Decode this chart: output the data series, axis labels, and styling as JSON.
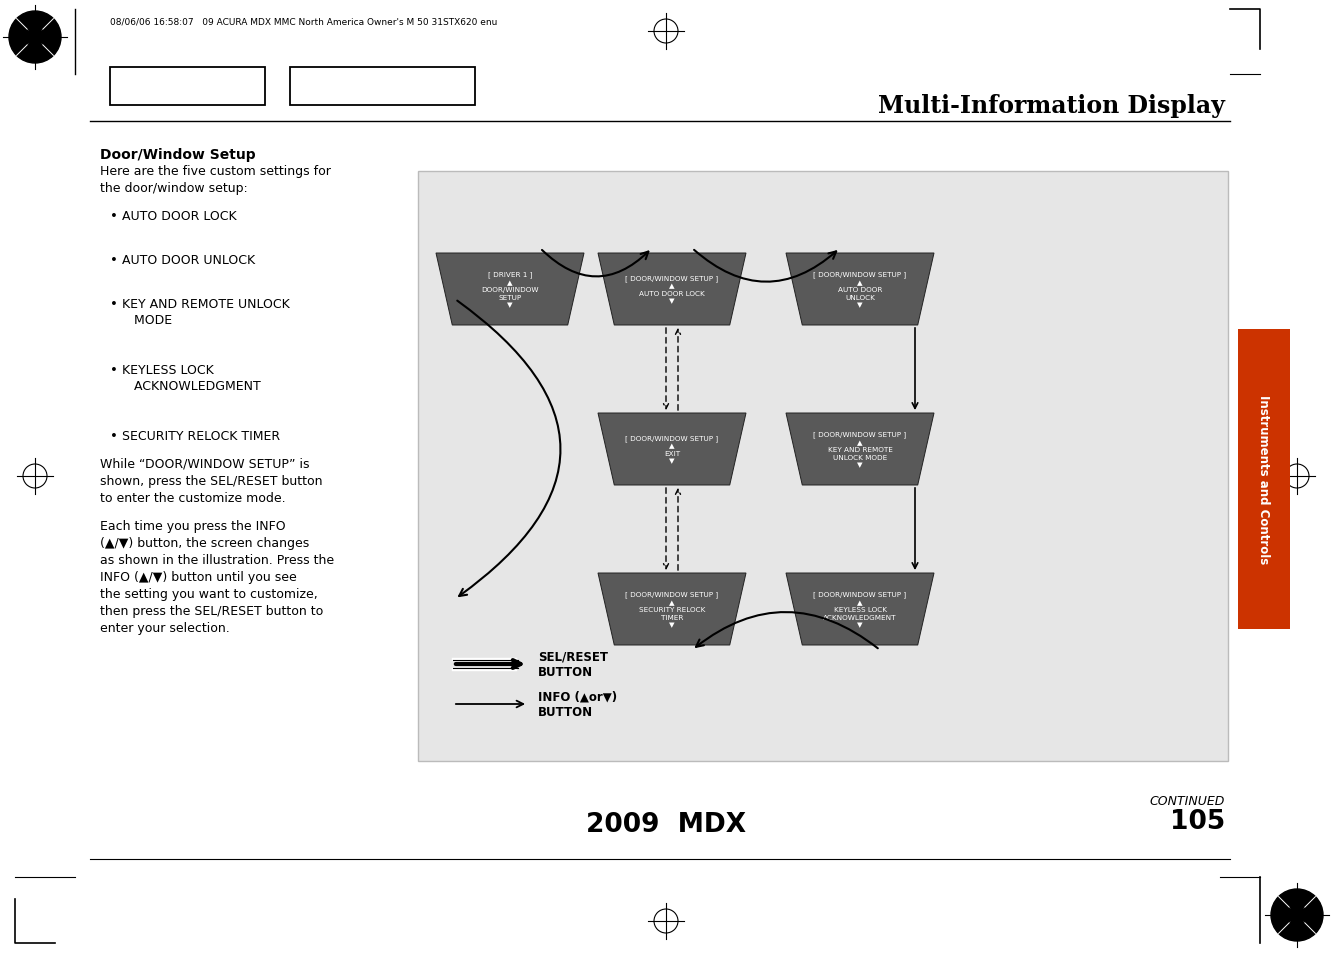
{
  "title": "Multi-Information Display",
  "page_header": "08/06/06 16:58:07   09 ACURA MDX MMC North America Owner's M 50 31STX620 enu",
  "page_number": "105",
  "page_model": "2009  MDX",
  "continued": "CONTINUED",
  "sidebar_text": "Instruments and Controls",
  "section_title": "Door/Window Setup",
  "section_body_bold": "Door/Window Setup",
  "section_para1": "Here are the five custom settings for\nthe door/window setup:",
  "bullets": [
    "AUTO DOOR LOCK",
    "AUTO DOOR UNLOCK",
    "KEY AND REMOTE UNLOCK\n   MODE",
    "KEYLESS LOCK\n   ACKNOWLEDGMENT",
    "SECURITY RELOCK TIMER"
  ],
  "para2": "While “DOOR/WINDOW SETUP” is\nshown, press the SEL/RESET button\nto enter the customize mode.",
  "para3": "Each time you press the INFO\n(▲/▼) button, the screen changes\nas shown in the illustration. Press the\nINFO (▲/▼) button until you see\nthe setting you want to customize,\nthen press the SEL/RESET button to\nenter your selection.",
  "diagram_bg": "#e6e6e6",
  "box_color": "#595959",
  "box_text_color": "#ffffff",
  "sel_reset_label": "SEL/RESET\nBUTTON",
  "info_button_label": "INFO (▲or▼)\nBUTTON",
  "sidebar_color": "#cc3300",
  "page_bg": "#ffffff"
}
